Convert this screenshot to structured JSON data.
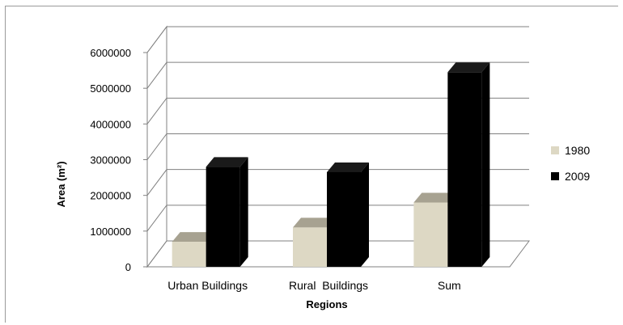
{
  "chart_data": {
    "type": "bar",
    "title": "",
    "xlabel": "Regions",
    "ylabel": "Area (m²)",
    "ylim": [
      0,
      6000000
    ],
    "yticks": [
      "0",
      "1000000",
      "2000000",
      "3000000",
      "4000000",
      "5000000",
      "6000000"
    ],
    "categories": [
      "Urban Buildings",
      "Rural  Buildings",
      "Sum"
    ],
    "series": [
      {
        "name": "1980",
        "values": [
          700000,
          1100000,
          1800000
        ],
        "color": "#ddd8c4"
      },
      {
        "name": "2009",
        "values": [
          2800000,
          2650000,
          5450000
        ],
        "color": "#000000"
      }
    ],
    "grid": true,
    "legend": "right",
    "style": "3d-column"
  }
}
